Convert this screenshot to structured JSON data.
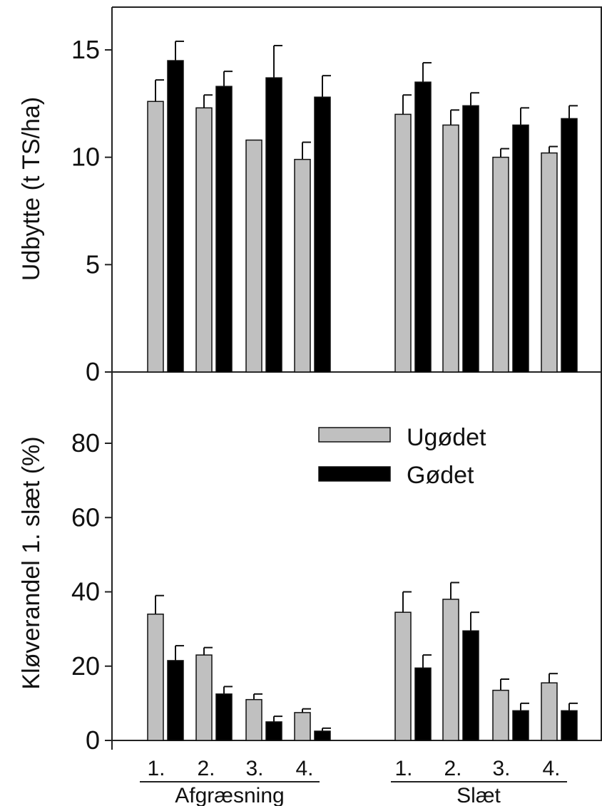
{
  "chart_data": [
    {
      "type": "bar",
      "ylabel": "Udbytte (t TS/ha)",
      "ylim": [
        0,
        17
      ],
      "yticks": [
        0,
        5,
        10,
        15
      ],
      "categories": [
        "1.",
        "2.",
        "3.",
        "4.",
        "1.",
        "2.",
        "3.",
        "4."
      ],
      "groups": [
        {
          "label": "Afgræsning",
          "categories": [
            "1.",
            "2.",
            "3.",
            "4."
          ]
        },
        {
          "label": "Slæt",
          "categories": [
            "1.",
            "2.",
            "3.",
            "4."
          ]
        }
      ],
      "series": [
        {
          "name": "Ugødet",
          "color": "#c0c0c0",
          "values": [
            12.6,
            12.3,
            10.8,
            9.9,
            12.0,
            11.5,
            10.0,
            10.2
          ],
          "error": [
            1.0,
            0.6,
            0.0,
            0.8,
            0.9,
            0.7,
            0.4,
            0.3
          ]
        },
        {
          "name": "Gødet",
          "color": "#000000",
          "values": [
            14.5,
            13.3,
            13.7,
            12.8,
            13.5,
            12.4,
            11.5,
            11.8
          ],
          "error": [
            0.9,
            0.7,
            1.5,
            1.0,
            0.9,
            0.6,
            0.8,
            0.6
          ]
        }
      ]
    },
    {
      "type": "bar",
      "ylabel": "Kløverandel 1. slæt (%)",
      "ylim": [
        0,
        100
      ],
      "yticks": [
        0,
        20,
        40,
        60,
        80
      ],
      "categories": [
        "1.",
        "2.",
        "3.",
        "4.",
        "1.",
        "2.",
        "3.",
        "4."
      ],
      "groups": [
        {
          "label": "Afgræsning",
          "categories": [
            "1.",
            "2.",
            "3.",
            "4."
          ]
        },
        {
          "label": "Slæt",
          "categories": [
            "1.",
            "2.",
            "3.",
            "4."
          ]
        }
      ],
      "legend": {
        "position": "center-right",
        "entries": [
          "Ugødet",
          "Gødet"
        ]
      },
      "series": [
        {
          "name": "Ugødet",
          "color": "#c0c0c0",
          "values": [
            34,
            23,
            11,
            7.5,
            34.5,
            38,
            13.5,
            15.5
          ],
          "error": [
            5,
            2,
            1.5,
            1,
            5.5,
            4.5,
            3,
            2.5
          ]
        },
        {
          "name": "Gødet",
          "color": "#000000",
          "values": [
            21.5,
            12.5,
            5,
            2.5,
            19.5,
            29.5,
            8,
            8
          ],
          "error": [
            4,
            2,
            1.5,
            0.8,
            3.5,
            5,
            2,
            2
          ]
        }
      ]
    }
  ],
  "xaxis": {
    "ticks": [
      "1.",
      "2.",
      "3.",
      "4.",
      "1.",
      "2.",
      "3.",
      "4."
    ],
    "groups": [
      "Afgræsning",
      "Slæt"
    ]
  }
}
